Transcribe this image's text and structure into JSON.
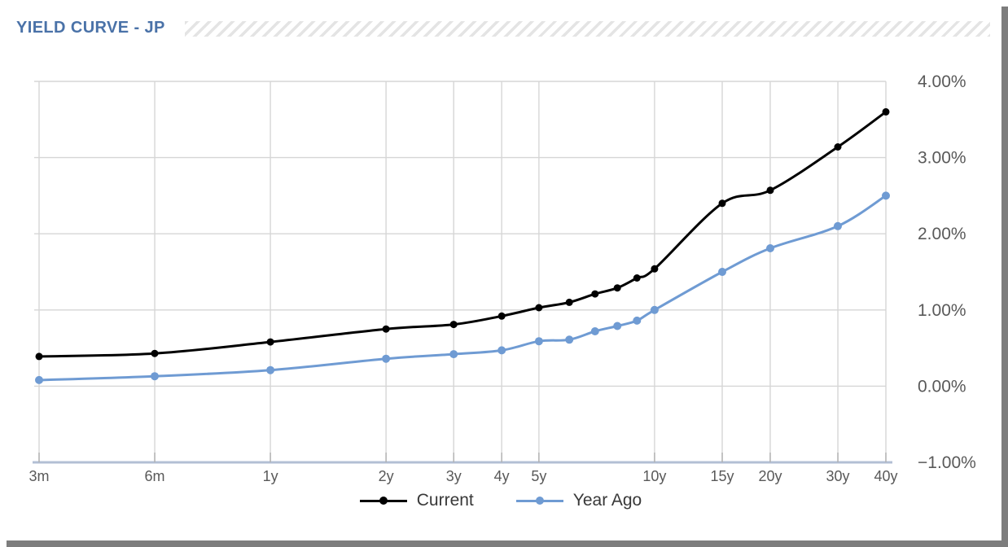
{
  "header": {
    "title": "YIELD CURVE - JP"
  },
  "legend": {
    "items": [
      {
        "label": "Current",
        "color": "#000000"
      },
      {
        "label": "Year Ago",
        "color": "#6f9bd3"
      }
    ]
  },
  "colors": {
    "title": "#4a72a8",
    "gridline": "#d6d6d6",
    "axis_line": "#b3bfd4",
    "tick_mark": "#b0b0b0",
    "tick_label": "#595959",
    "series_current": "#000000",
    "series_year_ago": "#6f9bd3",
    "shadow": "#7d7d7d"
  },
  "chart_data": {
    "type": "line",
    "title": "YIELD CURVE - JP",
    "x_scale": "log",
    "grid": true,
    "legend_position": "bottom",
    "ylim": [
      -1,
      4
    ],
    "y_ticks": [
      {
        "value": 4,
        "label": "4.00%"
      },
      {
        "value": 3,
        "label": "3.00%"
      },
      {
        "value": 2,
        "label": "2.00%"
      },
      {
        "value": 1,
        "label": "1.00%"
      },
      {
        "value": 0,
        "label": "0.00%"
      },
      {
        "value": -1,
        "label": "−1.00%"
      }
    ],
    "x_ticks": [
      {
        "years": 0.25,
        "label": "3m"
      },
      {
        "years": 0.5,
        "label": "6m"
      },
      {
        "years": 1,
        "label": "1y"
      },
      {
        "years": 2,
        "label": "2y"
      },
      {
        "years": 3,
        "label": "3y"
      },
      {
        "years": 4,
        "label": "4y"
      },
      {
        "years": 5,
        "label": "5y"
      },
      {
        "years": 10,
        "label": "10y"
      },
      {
        "years": 15,
        "label": "15y"
      },
      {
        "years": 20,
        "label": "20y"
      },
      {
        "years": 30,
        "label": "30y"
      },
      {
        "years": 40,
        "label": "40y"
      }
    ],
    "x_years": [
      0.25,
      0.5,
      1,
      2,
      3,
      4,
      5,
      6,
      7,
      8,
      9,
      10,
      15,
      20,
      30,
      40
    ],
    "series": [
      {
        "name": "Current",
        "color": "#000000",
        "marker_radius": 4.5,
        "values": [
          0.39,
          0.43,
          0.58,
          0.75,
          0.81,
          0.92,
          1.03,
          1.1,
          1.21,
          1.29,
          1.42,
          1.54,
          2.4,
          2.57,
          3.14,
          3.6
        ]
      },
      {
        "name": "Year Ago",
        "color": "#6f9bd3",
        "marker_radius": 5,
        "values": [
          0.08,
          0.13,
          0.21,
          0.36,
          0.42,
          0.47,
          0.59,
          0.61,
          0.72,
          0.79,
          0.86,
          1.0,
          1.5,
          1.81,
          2.1,
          2.5
        ]
      }
    ]
  }
}
